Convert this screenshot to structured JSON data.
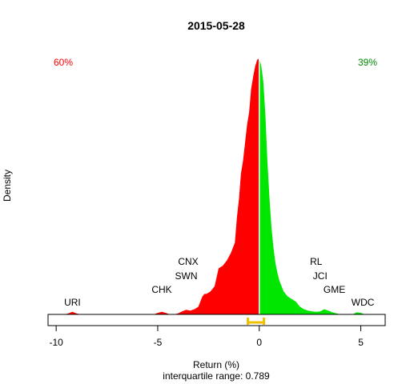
{
  "chart_data": {
    "type": "area",
    "title": "2015-05-28",
    "xlabel": "Return (%)",
    "ylabel": "Density",
    "subtitle": "interquartile range: 0.789",
    "xlim": [
      -10.4,
      6.2
    ],
    "ylim": [
      0,
      1
    ],
    "xticks": [
      -10,
      -5,
      0,
      5
    ],
    "xtick_labels": [
      "-10",
      "-5",
      "0",
      "5"
    ],
    "grid": false,
    "legend": "none",
    "pct_negative": "60%",
    "pct_positive": "39%",
    "colors": {
      "negative": "#ff0000",
      "positive": "#00e600",
      "pct_negative": "#ff0000",
      "pct_positive": "#008800",
      "quartile": "#f0c000",
      "zero_line": "#ffffff"
    },
    "quartile_range": [
      -0.56,
      0.23
    ],
    "density_curve": {
      "x": [
        -10.2,
        -9.6,
        -9.4,
        -9.2,
        -9.0,
        -8.8,
        -5.2,
        -5.0,
        -4.8,
        -4.6,
        -4.4,
        -4.2,
        -4.0,
        -3.8,
        -3.6,
        -3.4,
        -3.2,
        -3.0,
        -2.9,
        -2.8,
        -2.7,
        -2.6,
        -2.4,
        -2.2,
        -2.0,
        -1.8,
        -1.6,
        -1.4,
        -1.2,
        -1.1,
        -1.0,
        -0.9,
        -0.8,
        -0.7,
        -0.6,
        -0.5,
        -0.4,
        -0.3,
        -0.2,
        -0.1,
        0.0,
        0.1,
        0.2,
        0.3,
        0.4,
        0.5,
        0.6,
        0.7,
        0.8,
        0.9,
        1.0,
        1.2,
        1.4,
        1.6,
        1.8,
        2.0,
        2.2,
        2.4,
        2.6,
        2.8,
        3.0,
        3.2,
        3.4,
        3.6,
        3.8,
        4.0,
        4.2,
        4.6,
        4.8,
        5.0,
        5.2,
        5.4,
        5.6,
        6.0
      ],
      "y": [
        0,
        0,
        0.004,
        0.01,
        0.004,
        0,
        0,
        0.006,
        0.01,
        0.006,
        0,
        0,
        0.004,
        0.012,
        0.018,
        0.015,
        0.02,
        0.03,
        0.05,
        0.07,
        0.08,
        0.08,
        0.09,
        0.11,
        0.18,
        0.19,
        0.21,
        0.24,
        0.28,
        0.38,
        0.45,
        0.55,
        0.6,
        0.67,
        0.74,
        0.79,
        0.88,
        0.93,
        0.97,
        0.995,
        1.0,
        0.97,
        0.91,
        0.78,
        0.6,
        0.46,
        0.34,
        0.26,
        0.2,
        0.16,
        0.13,
        0.09,
        0.07,
        0.06,
        0.05,
        0.03,
        0.02,
        0.015,
        0.012,
        0.01,
        0.012,
        0.02,
        0.015,
        0.008,
        0.004,
        0,
        0,
        0,
        0.008,
        0.006,
        0,
        0,
        0,
        0
      ]
    },
    "annotations": [
      {
        "label": "URI",
        "x": -9.2,
        "row": 1
      },
      {
        "label": "CHK",
        "x": -4.8,
        "row": 2
      },
      {
        "label": "SWN",
        "x": -3.6,
        "row": 3
      },
      {
        "label": "CNX",
        "x": -3.5,
        "row": 4
      },
      {
        "label": "RL",
        "x": 2.8,
        "row": 4
      },
      {
        "label": "JCI",
        "x": 3.0,
        "row": 3
      },
      {
        "label": "GME",
        "x": 3.7,
        "row": 2
      },
      {
        "label": "WDC",
        "x": 5.1,
        "row": 1
      }
    ]
  }
}
